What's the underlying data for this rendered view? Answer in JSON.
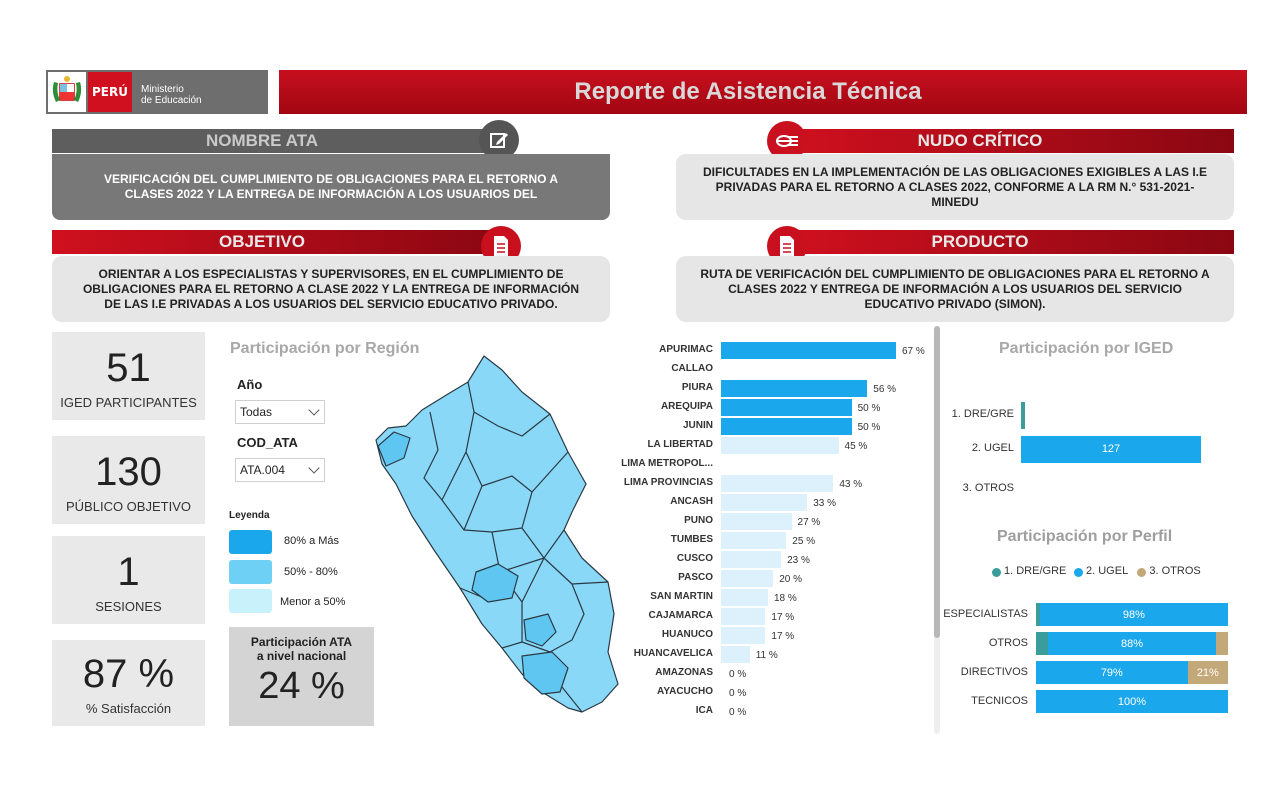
{
  "header": {
    "country": "PERÚ",
    "ministry_line1": "Ministerio",
    "ministry_line2": "de Educación",
    "title": "Reporte de Asistencia Técnica"
  },
  "nombre_ata": {
    "title": "NOMBRE ATA",
    "text": "VERIFICACIÓN DEL CUMPLIMIENTO DE OBLIGACIONES PARA EL RETORNO A CLASES 2022 Y LA ENTREGA DE INFORMACIÓN A LOS USUARIOS DEL"
  },
  "nudo_critico": {
    "title": "NUDO CRÍTICO",
    "text": "DIFICULTADES EN LA IMPLEMENTACIÓN DE LAS OBLIGACIONES EXIGIBLES A LAS I.E PRIVADAS PARA EL RETORNO A CLASES 2022, CONFORME A LA RM N.° 531-2021-MINEDU"
  },
  "objetivo": {
    "title": "OBJETIVO",
    "text": "ORIENTAR A LOS ESPECIALISTAS Y SUPERVISORES, EN EL CUMPLIMIENTO DE OBLIGACIONES PARA EL RETORNO A CLASE 2022 Y LA ENTREGA DE INFORMACIÓN DE LAS I.E PRIVADAS A LOS USUARIOS DEL SERVICIO EDUCATIVO PRIVADO."
  },
  "producto": {
    "title": "PRODUCTO",
    "text": "RUTA DE VERIFICACIÓN DEL CUMPLIMIENTO DE OBLIGACIONES PARA EL RETORNO A CLASES 2022 Y ENTREGA DE INFORMACIÓN A LOS USUARIOS DEL SERVICIO EDUCATIVO PRIVADO (SIMON)."
  },
  "kpis": [
    {
      "value": "51",
      "label": "IGED PARTICIPANTES"
    },
    {
      "value": "130",
      "label": "PÚBLICO OBJETIVO"
    },
    {
      "value": "1",
      "label": "SESIONES"
    },
    {
      "value": "87 %",
      "label": "% Satisfacción"
    }
  ],
  "region_panel": {
    "title": "Participación por Región",
    "filter_year_label": "Año",
    "filter_year_value": "Todas",
    "filter_code_label": "COD_ATA",
    "filter_code_value": "ATA.004",
    "legend_title": "Leyenda",
    "legend": [
      {
        "label": "80% a Más",
        "color": "#1aa7ec"
      },
      {
        "label": "50% - 80%",
        "color": "#6fd0f5"
      },
      {
        "label": "Menor  a 50%",
        "color": "#c9f1fb"
      }
    ],
    "national_label_1": "Participación ATA",
    "national_label_2": "a nivel nacional",
    "national_value": "24 %"
  },
  "chart_data": [
    {
      "type": "bar",
      "orientation": "horizontal",
      "categories": [
        "APURIMAC",
        "CALLAO",
        "PIURA",
        "AREQUIPA",
        "JUNIN",
        "LA LIBERTAD",
        "LIMA METROPOL...",
        "LIMA PROVINCIAS",
        "ANCASH",
        "PUNO",
        "TUMBES",
        "CUSCO",
        "PASCO",
        "SAN MARTIN",
        "CAJAMARCA",
        "HUANUCO",
        "HUANCAVELICA",
        "AMAZONAS",
        "AYACUCHO",
        "ICA"
      ],
      "values": [
        67,
        null,
        56,
        50,
        50,
        45,
        null,
        43,
        33,
        27,
        25,
        23,
        20,
        18,
        17,
        17,
        11,
        0,
        0,
        0
      ],
      "value_labels": [
        "67 %",
        "",
        "56 %",
        "50 %",
        "50 %",
        "45 %",
        "",
        "43 %",
        "33 %",
        "27 %",
        "25 %",
        "23 %",
        "20 %",
        "18 %",
        "17 %",
        "17 %",
        "11 %",
        "0 %",
        "0 %",
        "0 %"
      ],
      "colors": {
        "high": "#1aa7ec",
        "mid": "#6fd0f5",
        "low": "#ddf1fc"
      },
      "xlim": [
        0,
        67
      ]
    },
    {
      "type": "bar",
      "orientation": "horizontal",
      "title": "Participación por IGED",
      "categories": [
        "1. DRE/GRE",
        "2. UGEL",
        "3. OTROS"
      ],
      "values": [
        1,
        127,
        0
      ],
      "value_labels": [
        "",
        "127",
        ""
      ],
      "colors": [
        "#3b9c9c",
        "#1aa7ec",
        "#c3a97a"
      ],
      "xlim": [
        0,
        127
      ]
    },
    {
      "type": "bar",
      "orientation": "horizontal",
      "stacked": true,
      "title": "Participación por Perfil",
      "legend_position": "top",
      "categories": [
        "ESPECIALISTAS",
        "OTROS",
        "DIRECTIVOS",
        "TECNICOS"
      ],
      "series": [
        {
          "name": "1. DRE/GRE",
          "color": "#3b9c9c",
          "values": [
            2,
            6,
            0,
            0
          ],
          "labels": [
            "",
            "",
            "",
            ""
          ]
        },
        {
          "name": "2. UGEL",
          "color": "#1aa7ec",
          "values": [
            98,
            88,
            79,
            100
          ],
          "labels": [
            "98%",
            "88%",
            "79%",
            "100%"
          ]
        },
        {
          "name": "3. OTROS",
          "color": "#c3a97a",
          "values": [
            0,
            6,
            21,
            0
          ],
          "labels": [
            "",
            "",
            "21%",
            ""
          ]
        }
      ],
      "xlim": [
        0,
        100
      ]
    }
  ],
  "map": {
    "colors": {
      "base": "#8ad8f7",
      "mid": "#5fc6f1",
      "stroke": "#2a3a44"
    }
  },
  "icons": {
    "edit": "edit-icon",
    "nudo": "link-icon",
    "doc": "document-icon"
  }
}
